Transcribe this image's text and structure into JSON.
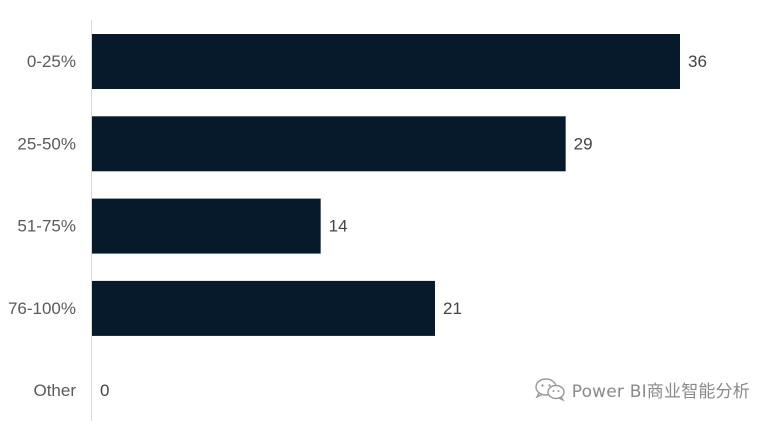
{
  "chart_data": {
    "type": "bar",
    "orientation": "horizontal",
    "categories": [
      "0-25%",
      "25-50%",
      "51-75%",
      "76-100%",
      "Other"
    ],
    "values": [
      36,
      29,
      14,
      21,
      0
    ],
    "xlim": [
      0,
      36
    ],
    "grid": false,
    "bar_color": "#071a2b"
  },
  "watermark": {
    "text": "Power BI商业智能分析",
    "icon": "wechat-icon"
  }
}
